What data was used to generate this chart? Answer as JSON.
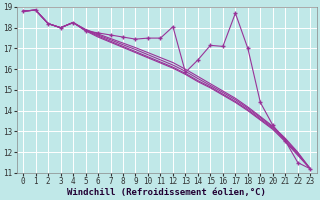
{
  "xlabel": "Windchill (Refroidissement éolien,°C)",
  "bg_color": "#c0e8e8",
  "line_color": "#993399",
  "grid_color": "#ffffff",
  "xlim": [
    -0.5,
    23.5
  ],
  "ylim": [
    11,
    19
  ],
  "yticks": [
    11,
    12,
    13,
    14,
    15,
    16,
    17,
    18,
    19
  ],
  "xticks": [
    0,
    1,
    2,
    3,
    4,
    5,
    6,
    7,
    8,
    9,
    10,
    11,
    12,
    13,
    14,
    15,
    16,
    17,
    18,
    19,
    20,
    21,
    22,
    23
  ],
  "lines": [
    {
      "x": [
        0,
        1,
        2,
        3,
        4,
        5,
        6,
        7,
        8,
        9,
        10,
        11,
        12,
        13,
        14,
        15,
        16,
        17,
        18,
        19,
        20,
        21,
        22,
        23
      ],
      "y": [
        18.8,
        18.85,
        18.2,
        18.0,
        18.25,
        17.85,
        17.75,
        17.65,
        17.55,
        17.45,
        17.5,
        17.5,
        18.05,
        15.85,
        16.45,
        17.15,
        17.1,
        18.7,
        17.0,
        14.4,
        13.3,
        12.55,
        11.5,
        11.2
      ],
      "marker": "+"
    },
    {
      "x": [
        0,
        1,
        2,
        3,
        4,
        5,
        6,
        7,
        8,
        9,
        10,
        11,
        12,
        13,
        14,
        15,
        16,
        17,
        18,
        19,
        20,
        21,
        22,
        23
      ],
      "y": [
        18.8,
        18.85,
        18.2,
        18.0,
        18.25,
        17.85,
        17.55,
        17.3,
        17.05,
        16.8,
        16.55,
        16.3,
        16.05,
        15.75,
        15.4,
        15.1,
        14.75,
        14.4,
        14.0,
        13.55,
        13.1,
        12.5,
        11.85,
        11.2
      ],
      "marker": null
    },
    {
      "x": [
        0,
        1,
        2,
        3,
        4,
        5,
        6,
        7,
        8,
        9,
        10,
        11,
        12,
        13,
        14,
        15,
        16,
        17,
        18,
        19,
        20,
        21,
        22,
        23
      ],
      "y": [
        18.8,
        18.85,
        18.2,
        18.0,
        18.25,
        17.88,
        17.6,
        17.35,
        17.1,
        16.85,
        16.6,
        16.35,
        16.1,
        15.8,
        15.45,
        15.15,
        14.8,
        14.45,
        14.05,
        13.6,
        13.15,
        12.55,
        11.9,
        11.2
      ],
      "marker": null
    },
    {
      "x": [
        0,
        1,
        2,
        3,
        4,
        5,
        6,
        7,
        8,
        9,
        10,
        11,
        12,
        13,
        14,
        15,
        16,
        17,
        18,
        19,
        20,
        21,
        22,
        23
      ],
      "y": [
        18.8,
        18.85,
        18.2,
        18.0,
        18.25,
        17.9,
        17.65,
        17.42,
        17.18,
        16.95,
        16.7,
        16.45,
        16.2,
        15.9,
        15.55,
        15.22,
        14.88,
        14.53,
        14.12,
        13.67,
        13.2,
        12.62,
        11.95,
        11.2
      ],
      "marker": null
    },
    {
      "x": [
        0,
        1,
        2,
        3,
        4,
        5,
        6,
        7,
        8,
        9,
        10,
        11,
        12,
        13,
        14,
        15,
        16,
        17,
        18,
        19,
        20,
        21,
        22,
        23
      ],
      "y": [
        18.8,
        18.85,
        18.2,
        18.0,
        18.25,
        17.92,
        17.7,
        17.48,
        17.26,
        17.04,
        16.8,
        16.56,
        16.32,
        16.0,
        15.65,
        15.3,
        14.95,
        14.6,
        14.18,
        13.72,
        13.25,
        12.67,
        12.0,
        11.2
      ],
      "marker": null
    }
  ],
  "xlabel_fontsize": 6.5,
  "tick_fontsize": 5.5
}
